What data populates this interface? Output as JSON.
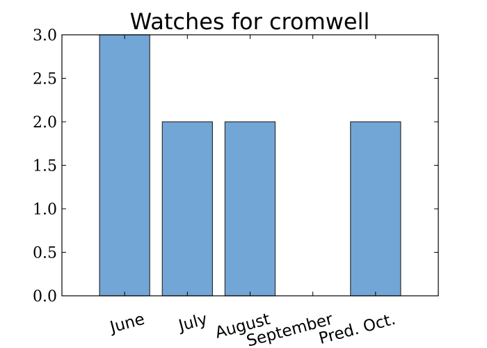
{
  "chart_data": {
    "type": "bar",
    "title": "Watches for cromwell",
    "xlabel": "",
    "ylabel": "",
    "categories": [
      "June",
      "July",
      "August",
      "September",
      "Pred. Oct."
    ],
    "values": [
      3,
      2,
      2,
      0,
      2
    ],
    "ylim": [
      0,
      3
    ],
    "yticks": [
      "0.0",
      "0.5",
      "1.0",
      "1.5",
      "2.0",
      "2.5",
      "3.0"
    ],
    "grid": false,
    "bar_color": "#72a6d6",
    "edge_color": "#2f2f2f"
  }
}
